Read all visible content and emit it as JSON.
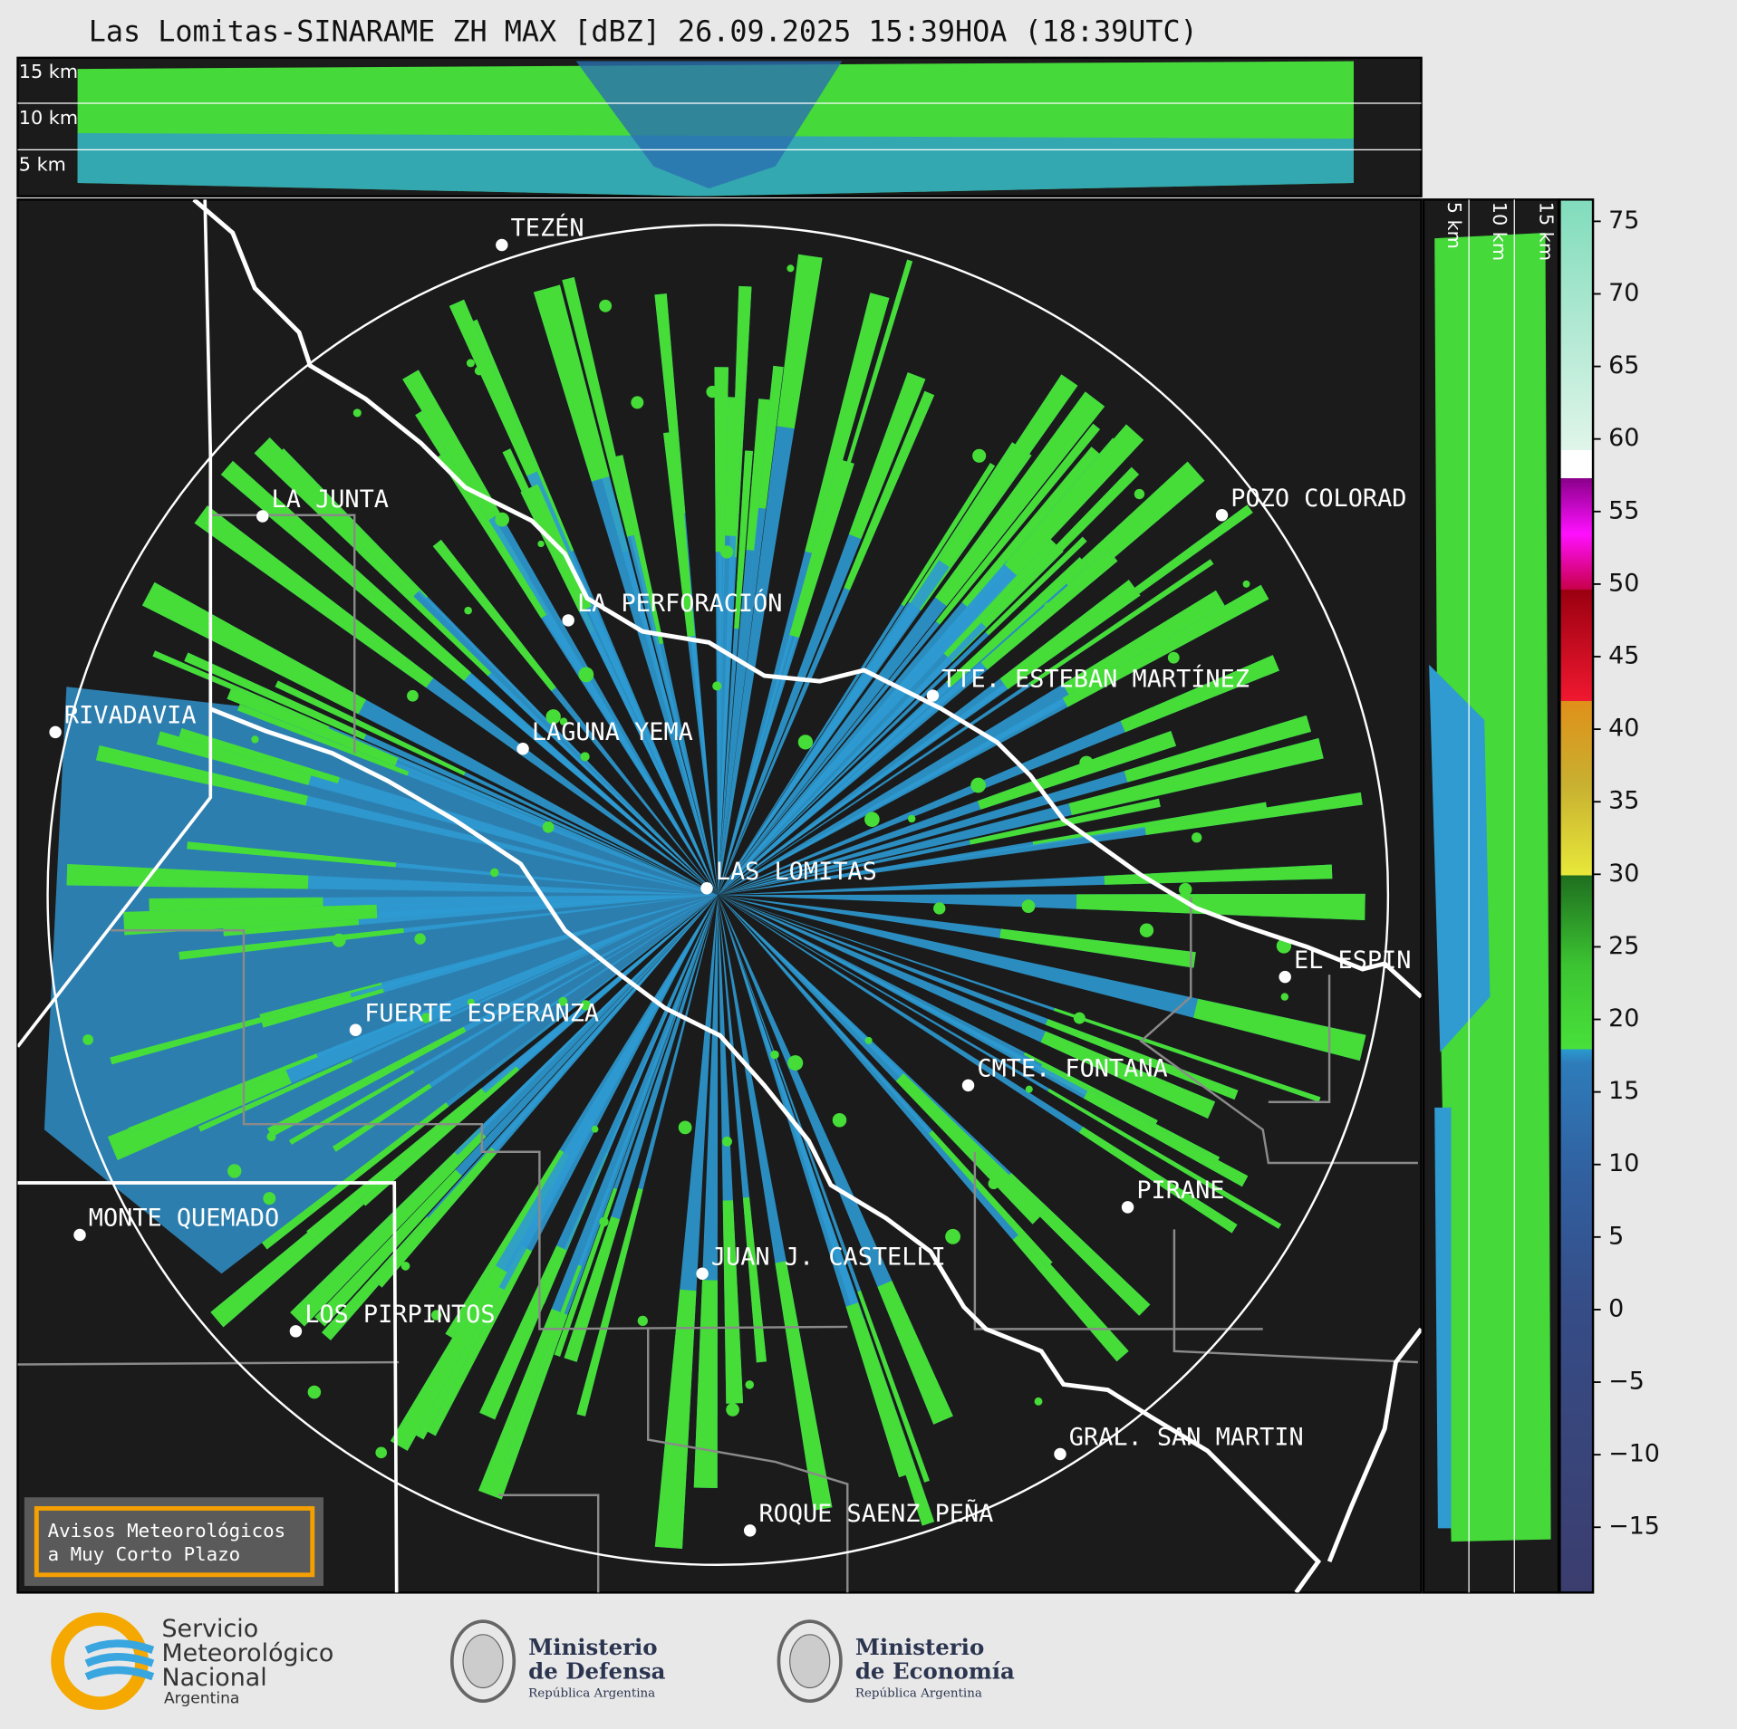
{
  "header": {
    "title": "Las Lomitas-SINARAME ZH MAX [dBZ] 26.09.2025 15:39HOA (18:39UTC)"
  },
  "top_panel": {
    "altitude_labels": [
      "15 km",
      "10 km",
      "5 km"
    ]
  },
  "side_panel": {
    "altitude_labels": [
      "5 km",
      "10 km",
      "15 km"
    ]
  },
  "map": {
    "places": [
      "TEZÉN",
      "LA JUNTA",
      "LA PERFORACIÓN",
      "POZO COLORAD",
      "TTE. ESTEBAN MARTÍNEZ",
      "RIVADAVIA",
      "LAGUNA YEMA",
      "LAS LOMITAS",
      "EL ESPIN",
      "FUERTE ESPERANZA",
      "CMTE. FONTANA",
      "PIRANE",
      "MONTE QUEMADO",
      "JUAN J. CASTELLI",
      "LOS PIRPINTOS",
      "GRAL. SAN MARTIN",
      "ROQUE SAENZ PEÑA"
    ]
  },
  "colorbar": {
    "lim": [
      -19.5,
      76.5
    ],
    "ticks": [
      75,
      70,
      65,
      60,
      55,
      50,
      45,
      40,
      35,
      30,
      25,
      20,
      15,
      10,
      5,
      0,
      {
        "value": -5,
        "label": "−5"
      },
      {
        "value": -10,
        "label": "−10"
      },
      {
        "value": -15,
        "label": "−15"
      }
    ]
  },
  "notice": {
    "lines": [
      "Avisos Meteorológicos",
      "a Muy Corto Plazo"
    ]
  },
  "footer": {
    "smn": [
      "Servicio",
      "Meteorológico",
      "Nacional",
      "Argentina"
    ],
    "defensa": [
      "Ministerio",
      "de Defensa",
      "República Argentina"
    ],
    "economia": [
      "Ministerio",
      "de Economía",
      "República Argentina"
    ]
  }
}
